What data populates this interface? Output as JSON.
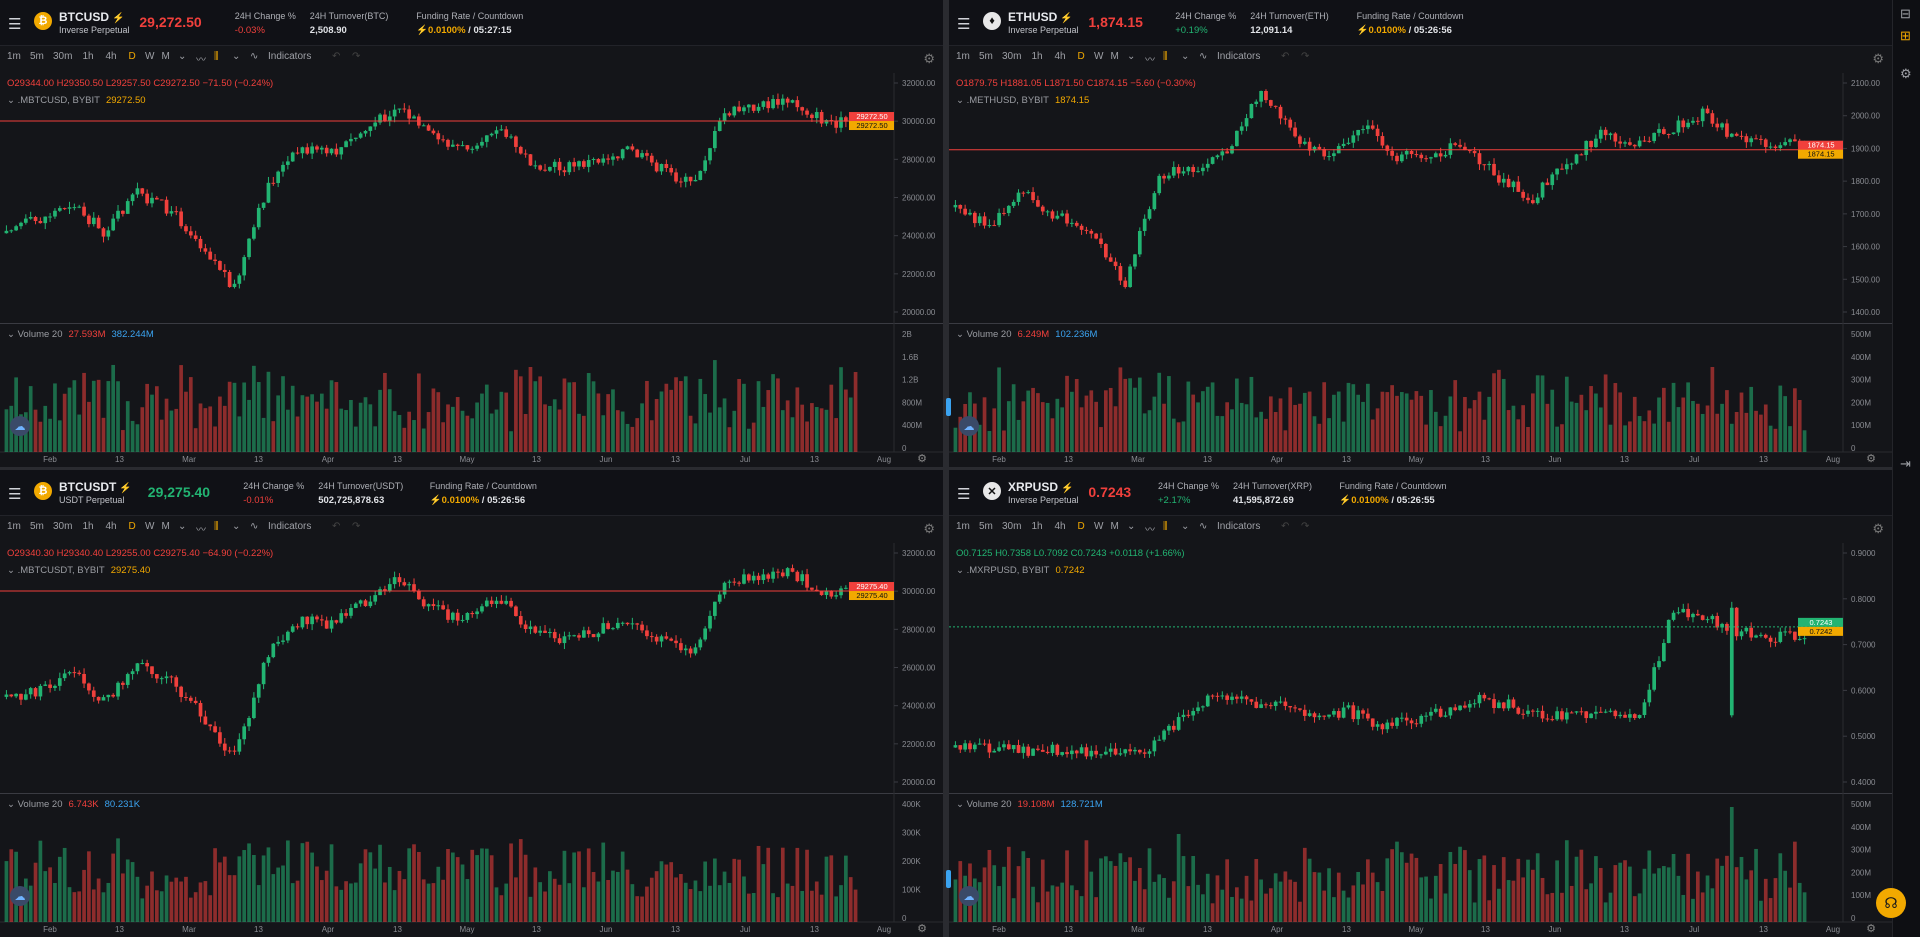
{
  "toolbar": {
    "intervals": [
      "1m",
      "5m",
      "30m",
      "1h",
      "4h",
      "D",
      "W",
      "M"
    ],
    "active_interval": "D",
    "indicators": "Indicators"
  },
  "x_ticks": [
    "Feb",
    "13",
    "Mar",
    "13",
    "Apr",
    "13",
    "May",
    "13",
    "Jun",
    "13",
    "Jul",
    "13",
    "Aug"
  ],
  "colors": {
    "up": "#22b472",
    "down": "#f0403c",
    "accent": "#f2a900",
    "blue": "#3ba3f0"
  },
  "panels": [
    {
      "symbol": "BTCUSD",
      "subtitle": "Inverse Perpetual",
      "coin_icon": "bitcoin-icon",
      "coin_glyph": "₿",
      "coin_bg": "#f2a900",
      "price": "29,272.50",
      "price_color": "#f0403c",
      "change_label": "24H Change %",
      "change": "-0.03%",
      "change_dir": "red",
      "turnover_label": "24H Turnover(BTC)",
      "turnover": "2,508.90",
      "funding_label": "Funding Rate  /  Countdown",
      "funding_rate": "0.0100%",
      "countdown": "/ 05:27:15",
      "ohlc": "O29344.00  H29350.50  L29257.50  C29272.50  −71.50  (−0.24%)",
      "ohlc_dir": "red",
      "source": ".MBTCUSD, BYBIT",
      "source_value": "29272.50",
      "volume_label": "Volume 20",
      "vol_a": "27.593M",
      "vol_b": "382.244M",
      "y_ticks": [
        "32000.00",
        "30000.00",
        "28000.00",
        "26000.00",
        "24000.00",
        "22000.00",
        "20000.00"
      ],
      "vol_ticks": [
        "2B",
        "1.6B",
        "1.2B",
        "800M",
        "400M",
        "0"
      ],
      "price_tag": "29272.50",
      "price_tag2": "29272.50"
    },
    {
      "symbol": "ETHUSD",
      "subtitle": "Inverse Perpetual",
      "coin_icon": "ethereum-icon",
      "coin_glyph": "♦",
      "coin_bg": "#e8e8e8",
      "price": "1,874.15",
      "price_color": "#f0403c",
      "change_label": "24H Change %",
      "change": "+0.19%",
      "change_dir": "green",
      "turnover_label": "24H Turnover(ETH)",
      "turnover": "12,091.14",
      "funding_label": "Funding Rate  /  Countdown",
      "funding_rate": "0.0100%",
      "countdown": "/ 05:26:56",
      "ohlc": "O1879.75  H1881.05  L1871.50  C1874.15  −5.60  (−0.30%)",
      "ohlc_dir": "red",
      "source": ".METHUSD, BYBIT",
      "source_value": "1874.15",
      "volume_label": "Volume 20",
      "vol_a": "6.249M",
      "vol_b": "102.236M",
      "y_ticks": [
        "2100.00",
        "2000.00",
        "1900.00",
        "1800.00",
        "1700.00",
        "1600.00",
        "1500.00",
        "1400.00"
      ],
      "vol_ticks": [
        "500M",
        "400M",
        "300M",
        "200M",
        "100M",
        "0"
      ],
      "price_tag": "1874.15",
      "price_tag2": "1874.15"
    },
    {
      "symbol": "BTCUSDT",
      "subtitle": "USDT Perpetual",
      "coin_icon": "bitcoin-icon",
      "coin_glyph": "₿",
      "coin_bg": "#f2a900",
      "price": "29,275.40",
      "price_color": "#22b472",
      "change_label": "24H Change %",
      "change": "-0.01%",
      "change_dir": "red",
      "turnover_label": "24H Turnover(USDT)",
      "turnover": "502,725,878.63",
      "funding_label": "Funding Rate  /  Countdown",
      "funding_rate": "0.0100%",
      "countdown": "/ 05:26:56",
      "ohlc": "O29340.30  H29340.40  L29255.00  C29275.40  −64.90  (−0.22%)",
      "ohlc_dir": "red",
      "source": ".MBTCUSDT, BYBIT",
      "source_value": "29275.40",
      "volume_label": "Volume 20",
      "vol_a": "6.743K",
      "vol_b": "80.231K",
      "y_ticks": [
        "32000.00",
        "30000.00",
        "28000.00",
        "26000.00",
        "24000.00",
        "22000.00",
        "20000.00"
      ],
      "vol_ticks": [
        "400K",
        "300K",
        "200K",
        "100K",
        "0"
      ],
      "price_tag": "29275.40",
      "price_tag2": "29275.40"
    },
    {
      "symbol": "XRPUSD",
      "subtitle": "Inverse Perpetual",
      "coin_icon": "xrp-icon",
      "coin_glyph": "✕",
      "coin_bg": "#e8e8e8",
      "price": "0.7243",
      "price_color": "#f0403c",
      "change_label": "24H Change %",
      "change": "+2.17%",
      "change_dir": "green",
      "turnover_label": "24H Turnover(XRP)",
      "turnover": "41,595,872.69",
      "funding_label": "Funding Rate  /  Countdown",
      "funding_rate": "0.0100%",
      "countdown": "/ 05:26:55",
      "ohlc": "O0.7125  H0.7358  L0.7092  C0.7243  +0.0118  (+1.66%)",
      "ohlc_dir": "green",
      "source": ".MXRPUSD, BYBIT",
      "source_value": "0.7242",
      "volume_label": "Volume 20",
      "vol_a": "19.108M",
      "vol_b": "128.721M",
      "y_ticks": [
        "0.9000",
        "0.8000",
        "0.7000",
        "0.6000",
        "0.5000",
        "0.4000"
      ],
      "vol_ticks": [
        "500M",
        "400M",
        "300M",
        "200M",
        "100M",
        "0"
      ],
      "price_tag": "0.7243",
      "price_tag2": "0.7242"
    }
  ]
}
